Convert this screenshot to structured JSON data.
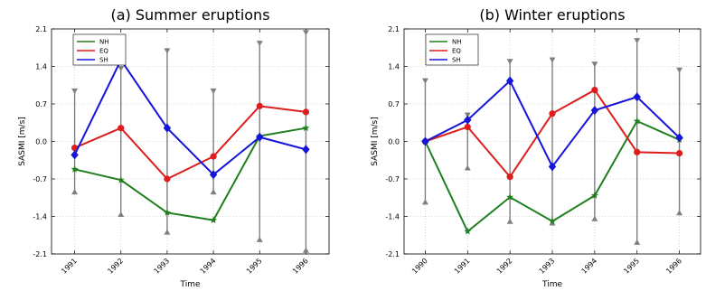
{
  "chart_data": [
    {
      "type": "line",
      "title": "(a) Summer eruptions",
      "xlabel": "Time",
      "ylabel": "SASMI [m/s]",
      "categories": [
        "1991",
        "1992",
        "1993",
        "1994",
        "1995",
        "1996"
      ],
      "yticks": [
        "-2.1",
        "-1.4",
        "-0.7",
        "0.0",
        "0.7",
        "1.4",
        "2.1"
      ],
      "ylim": [
        -2.1,
        2.1
      ],
      "grid": true,
      "legend": "top-left",
      "series": [
        {
          "name": "NH",
          "color": "#1f7f1f",
          "marker": "star",
          "values": [
            -0.52,
            -0.72,
            -1.33,
            -1.47,
            0.1,
            0.25
          ]
        },
        {
          "name": "EQ",
          "color": "#dd1c1c",
          "marker": "circle",
          "values": [
            -0.12,
            0.25,
            -0.7,
            -0.28,
            0.66,
            0.55
          ]
        },
        {
          "name": "SH",
          "color": "#1515d9",
          "marker": "diamond",
          "values": [
            -0.25,
            1.52,
            0.25,
            -0.62,
            0.08,
            -0.15
          ]
        }
      ],
      "error_range": [
        {
          "low": -0.93,
          "high": 0.93
        },
        {
          "low": -1.35,
          "high": 1.35
        },
        {
          "low": -1.68,
          "high": 1.68
        },
        {
          "low": -0.93,
          "high": 0.93
        },
        {
          "low": -1.82,
          "high": 1.82
        },
        {
          "low": -2.02,
          "high": 2.02
        }
      ]
    },
    {
      "type": "line",
      "title": "(b) Winter eruptions",
      "xlabel": "Time",
      "ylabel": "SASMI [m/s]",
      "categories": [
        "1990",
        "1991",
        "1992",
        "1993",
        "1994",
        "1995",
        "1996"
      ],
      "yticks": [
        "-2.1",
        "-1.4",
        "-0.7",
        "0.0",
        "0.7",
        "1.4",
        "2.1"
      ],
      "ylim": [
        -2.1,
        2.1
      ],
      "grid": true,
      "legend": "top-left",
      "series": [
        {
          "name": "NH",
          "color": "#1f7f1f",
          "marker": "star",
          "values": [
            0.0,
            -1.68,
            -1.04,
            -1.49,
            -1.01,
            0.38,
            0.03
          ]
        },
        {
          "name": "EQ",
          "color": "#dd1c1c",
          "marker": "circle",
          "values": [
            0.0,
            0.27,
            -0.66,
            0.52,
            0.96,
            -0.2,
            -0.22
          ]
        },
        {
          "name": "SH",
          "color": "#1515d9",
          "marker": "diamond",
          "values": [
            0.0,
            0.4,
            1.13,
            -0.47,
            0.58,
            0.83,
            0.07
          ]
        }
      ],
      "error_range": [
        {
          "low": -1.12,
          "high": 1.12
        },
        {
          "low": -0.48,
          "high": 0.48
        },
        {
          "low": -1.48,
          "high": 1.48
        },
        {
          "low": -1.51,
          "high": 1.51
        },
        {
          "low": -1.43,
          "high": 1.43
        },
        {
          "low": -1.87,
          "high": 1.87
        },
        {
          "low": -1.32,
          "high": 1.32
        }
      ]
    }
  ]
}
